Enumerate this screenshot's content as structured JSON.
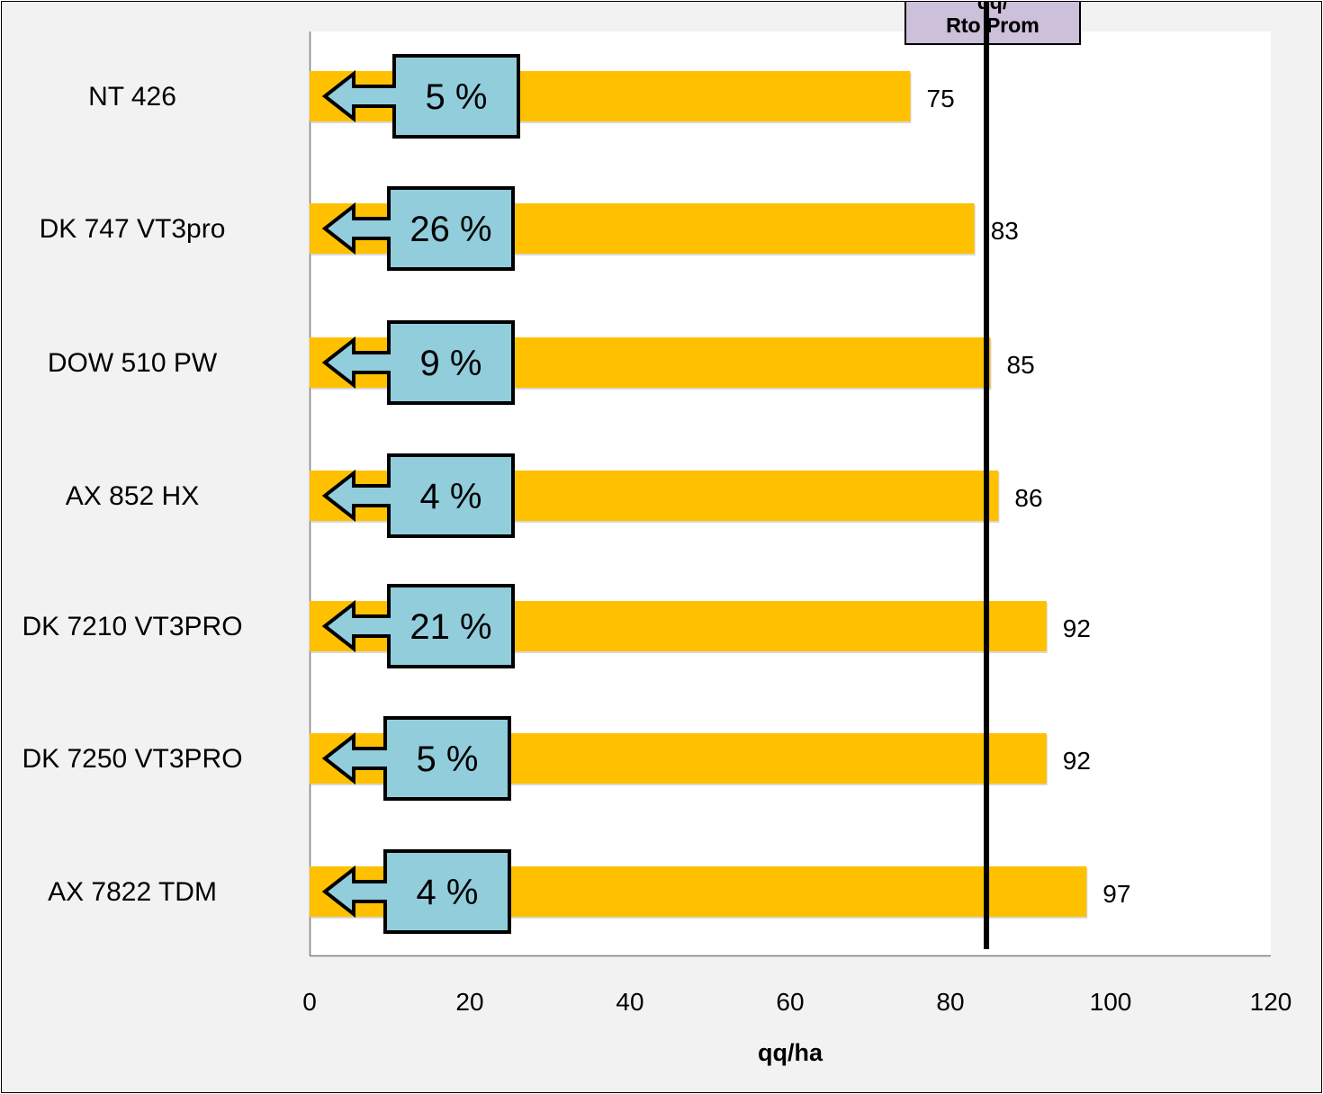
{
  "chart_data": {
    "type": "bar",
    "orientation": "horizontal",
    "categories": [
      "NT 426",
      "DK 747 VT3pro",
      "DOW 510 PW",
      "AX 852 HX",
      "DK 7210 VT3PRO",
      "DK 7250 VT3PRO",
      "AX 7822 TDM"
    ],
    "values": [
      75,
      83,
      85,
      86,
      92,
      92,
      97
    ],
    "value_labels": [
      "75",
      "83",
      "85",
      "86",
      "92",
      "92",
      "97"
    ],
    "callouts": [
      "5 %",
      "26 %",
      "9 %",
      "4 %",
      "21 %",
      "5 %",
      "4 %"
    ],
    "xlabel": "qq/ha",
    "xlim": [
      0,
      120
    ],
    "xticks": [
      0,
      20,
      40,
      60,
      80,
      100,
      120
    ],
    "xtick_labels": [
      "0",
      "20",
      "40",
      "60",
      "80",
      "100",
      "120"
    ],
    "reference_line": {
      "value": 84.5,
      "label_lines": [
        "qq/",
        "Rto Prom"
      ]
    },
    "grid": false,
    "legend": "none",
    "colors": {
      "bar": "#ffc000",
      "callout_fill": "#92cddc",
      "callout_border": "#000000",
      "reference_label_fill": "#ccc0da",
      "reference_line": "#000000",
      "background": "#f2f2f2",
      "plot_background": "#ffffff"
    }
  }
}
